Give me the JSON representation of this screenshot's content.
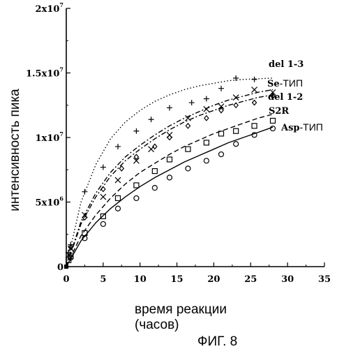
{
  "figure_caption": "ФИГ. 8",
  "chart_data": {
    "type": "scatter",
    "title": "",
    "xlabel_line1": "время реакции",
    "xlabel_line2": "(часов)",
    "ylabel": "интенсивность пика",
    "xlim": [
      0,
      35
    ],
    "ylim": [
      0,
      20000000
    ],
    "x_ticks": [
      "0",
      "5",
      "10",
      "15",
      "20",
      "25",
      "30",
      "35"
    ],
    "y_ticks": [
      {
        "value": 0,
        "mantissa": "0",
        "exp": ""
      },
      {
        "value": 5000000,
        "mantissa": "5x10",
        "exp": "6"
      },
      {
        "value": 10000000,
        "mantissa": "1x10",
        "exp": "7"
      },
      {
        "value": 15000000,
        "mantissa": "1.5x10",
        "exp": "7"
      },
      {
        "value": 20000000,
        "mantissa": "2x10",
        "exp": "7"
      }
    ],
    "grid": false,
    "series": [
      {
        "name": "del 1-3",
        "marker": "plus",
        "line": "dotted",
        "points": [
          [
            0.3,
            1100000
          ],
          [
            0.6,
            1700000
          ],
          [
            2.5,
            5800000
          ],
          [
            5,
            7700000
          ],
          [
            7,
            9300000
          ],
          [
            9.5,
            10500000
          ],
          [
            11.5,
            11400000
          ],
          [
            14,
            12300000
          ],
          [
            17,
            12700000
          ],
          [
            19,
            13000000
          ],
          [
            21,
            13800000
          ],
          [
            23,
            14600000
          ],
          [
            25.5,
            14500000
          ]
        ],
        "fit": [
          [
            0,
            0
          ],
          [
            2,
            5000000
          ],
          [
            4,
            7900000
          ],
          [
            6,
            9900000
          ],
          [
            8,
            11200000
          ],
          [
            10,
            12100000
          ],
          [
            12,
            12800000
          ],
          [
            14,
            13300000
          ],
          [
            16,
            13700000
          ],
          [
            18,
            14000000
          ],
          [
            20,
            14200000
          ],
          [
            22,
            14400000
          ],
          [
            24,
            14500000
          ],
          [
            26,
            14550000
          ],
          [
            28,
            14600000
          ]
        ]
      },
      {
        "name_prefix": "Se",
        "name_suffix": "-ТИП",
        "marker": "x",
        "line": "dashdot",
        "points": [
          [
            0.3,
            900000
          ],
          [
            0.6,
            1400000
          ],
          [
            2.5,
            4000000
          ],
          [
            5,
            5400000
          ],
          [
            7,
            6700000
          ],
          [
            9.5,
            8200000
          ],
          [
            11.5,
            9100000
          ],
          [
            14,
            10200000
          ],
          [
            16.5,
            11500000
          ],
          [
            19,
            12200000
          ],
          [
            21,
            12400000
          ],
          [
            23,
            13100000
          ],
          [
            25.5,
            13700000
          ],
          [
            28,
            13500000
          ]
        ],
        "fit": [
          [
            0,
            0
          ],
          [
            2,
            3500000
          ],
          [
            4,
            5700000
          ],
          [
            6,
            7300000
          ],
          [
            8,
            8500000
          ],
          [
            10,
            9400000
          ],
          [
            12,
            10200000
          ],
          [
            14,
            10900000
          ],
          [
            16,
            11500000
          ],
          [
            18,
            12000000
          ],
          [
            20,
            12500000
          ],
          [
            22,
            12900000
          ],
          [
            24,
            13200000
          ],
          [
            26,
            13500000
          ],
          [
            28,
            13700000
          ]
        ]
      },
      {
        "name": "del 1-2",
        "marker": "diamond",
        "line": "dashdot",
        "points": [
          [
            0.6,
            1500000
          ],
          [
            2.5,
            3800000
          ],
          [
            5,
            6000000
          ],
          [
            7.5,
            7600000
          ],
          [
            9.5,
            8500000
          ],
          [
            12,
            9300000
          ],
          [
            14,
            10000000
          ],
          [
            16.5,
            10900000
          ],
          [
            19,
            11500000
          ],
          [
            21,
            12100000
          ],
          [
            23,
            12500000
          ],
          [
            25.5,
            12700000
          ],
          [
            28,
            13200000
          ]
        ],
        "fit": [
          [
            0,
            0
          ],
          [
            2,
            3300000
          ],
          [
            4,
            5400000
          ],
          [
            6,
            7000000
          ],
          [
            8,
            8200000
          ],
          [
            10,
            9100000
          ],
          [
            12,
            9900000
          ],
          [
            14,
            10600000
          ],
          [
            16,
            11200000
          ],
          [
            18,
            11700000
          ],
          [
            20,
            12100000
          ],
          [
            22,
            12500000
          ],
          [
            24,
            12800000
          ],
          [
            26,
            13100000
          ],
          [
            28,
            13300000
          ]
        ]
      },
      {
        "name": "S2R",
        "marker": "square",
        "line": "dashed",
        "points": [
          [
            0.3,
            500000
          ],
          [
            0.6,
            800000
          ],
          [
            2.5,
            2600000
          ],
          [
            5,
            3900000
          ],
          [
            7,
            5300000
          ],
          [
            9.5,
            6300000
          ],
          [
            12,
            7400000
          ],
          [
            14,
            8300000
          ],
          [
            16.5,
            9100000
          ],
          [
            19,
            9600000
          ],
          [
            21,
            10300000
          ],
          [
            23,
            10500000
          ],
          [
            25.5,
            10900000
          ],
          [
            28,
            11300000
          ]
        ],
        "fit": [
          [
            0,
            0
          ],
          [
            2,
            2400000
          ],
          [
            4,
            4000000
          ],
          [
            6,
            5300000
          ],
          [
            8,
            6400000
          ],
          [
            10,
            7300000
          ],
          [
            12,
            8000000
          ],
          [
            14,
            8700000
          ],
          [
            16,
            9300000
          ],
          [
            18,
            9800000
          ],
          [
            20,
            10300000
          ],
          [
            22,
            10700000
          ],
          [
            24,
            11100000
          ],
          [
            26,
            11500000
          ],
          [
            28,
            11800000
          ]
        ]
      },
      {
        "name_prefix": "Asp",
        "name_suffix": "-ТИП",
        "marker": "circle",
        "line": "solid",
        "points": [
          [
            0.6,
            700000
          ],
          [
            2.5,
            2200000
          ],
          [
            5,
            3300000
          ],
          [
            7,
            4500000
          ],
          [
            9.5,
            5300000
          ],
          [
            12,
            6100000
          ],
          [
            14,
            6900000
          ],
          [
            16.5,
            7600000
          ],
          [
            19,
            8200000
          ],
          [
            21,
            8700000
          ],
          [
            23,
            9500000
          ],
          [
            25.5,
            10200000
          ],
          [
            28,
            10700000
          ]
        ],
        "fit": [
          [
            0,
            0
          ],
          [
            2,
            2000000
          ],
          [
            4,
            3400000
          ],
          [
            6,
            4500000
          ],
          [
            8,
            5400000
          ],
          [
            10,
            6200000
          ],
          [
            12,
            6900000
          ],
          [
            14,
            7500000
          ],
          [
            16,
            8100000
          ],
          [
            18,
            8600000
          ],
          [
            20,
            9100000
          ],
          [
            22,
            9600000
          ],
          [
            24,
            10000000
          ],
          [
            26,
            10400000
          ],
          [
            28,
            10800000
          ]
        ]
      }
    ]
  }
}
